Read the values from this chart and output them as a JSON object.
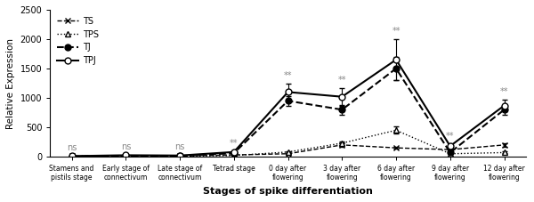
{
  "x_labels": [
    "Stamens and\npistils stage",
    "Early stage of\nconnectivum",
    "Late stage of\nconnectivum",
    "Tetrad stage",
    "0 day after\nflowering",
    "3 day after\nflowering",
    "6 day after\nflowering",
    "9 day after\nflowering",
    "12 day after\nflowering"
  ],
  "TS": [
    10,
    20,
    15,
    30,
    50,
    200,
    150,
    120,
    200
  ],
  "TS_err": [
    5,
    5,
    5,
    10,
    10,
    30,
    20,
    20,
    30
  ],
  "TPS": [
    5,
    10,
    10,
    20,
    80,
    230,
    450,
    50,
    70
  ],
  "TPS_err": [
    3,
    3,
    3,
    8,
    15,
    30,
    60,
    10,
    15
  ],
  "TJ": [
    8,
    15,
    12,
    60,
    950,
    800,
    1500,
    70,
    800
  ],
  "TJ_err": [
    4,
    4,
    4,
    15,
    80,
    80,
    200,
    20,
    80
  ],
  "TPJ": [
    10,
    25,
    20,
    80,
    1100,
    1020,
    1650,
    180,
    870
  ],
  "TPJ_err": [
    5,
    6,
    5,
    20,
    150,
    150,
    350,
    40,
    100
  ],
  "significance": [
    "ns",
    "ns",
    "ns",
    "**",
    "**",
    "**",
    "**",
    "**",
    "**"
  ],
  "ylim": [
    0,
    2500
  ],
  "yticks": [
    0,
    500,
    1000,
    1500,
    2000,
    2500
  ],
  "ylabel": "Relative Expression",
  "xlabel": "Stages of spike differentiation",
  "title": "",
  "bg_color": "#ffffff",
  "line_color": "#000000",
  "sig_color": "#888888"
}
